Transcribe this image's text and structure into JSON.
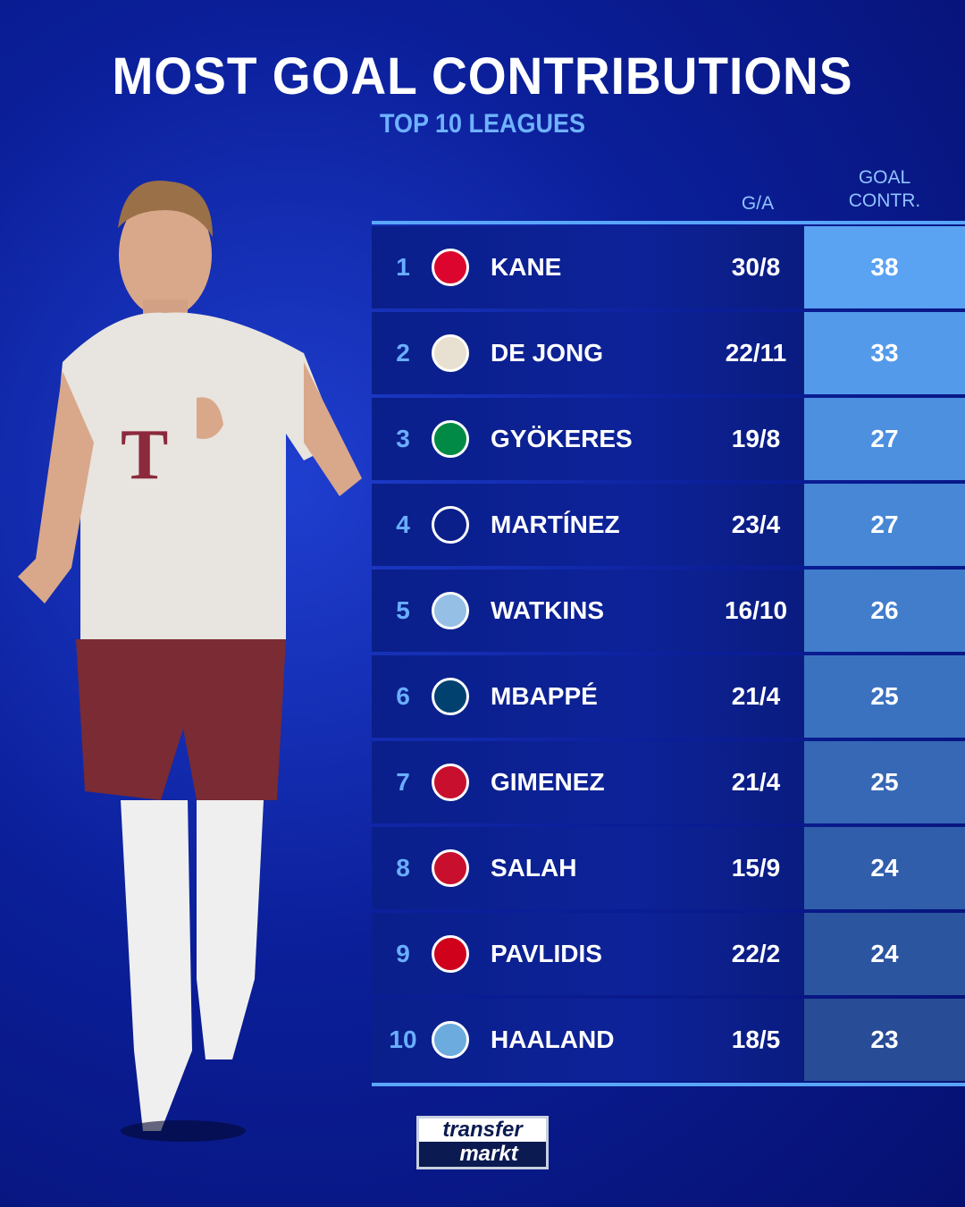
{
  "title": "MOST GOAL CONTRIBUTIONS",
  "subtitle": "TOP 10 LEAGUES",
  "columns": {
    "ga": "G/A",
    "contr_line1": "GOAL",
    "contr_line2": "CONTR."
  },
  "rows": [
    {
      "rank": "1",
      "club_icon": "bayern-munich-crest",
      "crest_color": "#dc052d",
      "name": "KANE",
      "ga": "30/8",
      "contr": "38",
      "cell_color": "#5aa2f2"
    },
    {
      "rank": "2",
      "club_icon": "psv-crest",
      "crest_color": "#e8e0d0",
      "name": "DE JONG",
      "ga": "22/11",
      "contr": "33",
      "cell_color": "#549aea"
    },
    {
      "rank": "3",
      "club_icon": "sporting-cp-crest",
      "crest_color": "#008a45",
      "name": "GYÖKERES",
      "ga": "19/8",
      "contr": "27",
      "cell_color": "#4d90e0"
    },
    {
      "rank": "4",
      "club_icon": "inter-crest",
      "crest_color": "#0a1f8a",
      "name": "MARTÍNEZ",
      "ga": "23/4",
      "contr": "27",
      "cell_color": "#4787d6"
    },
    {
      "rank": "5",
      "club_icon": "aston-villa-crest",
      "crest_color": "#95bfe5",
      "name": "WATKINS",
      "ga": "16/10",
      "contr": "26",
      "cell_color": "#417dcb"
    },
    {
      "rank": "6",
      "club_icon": "psg-crest",
      "crest_color": "#004170",
      "name": "MBAPPÉ",
      "ga": "21/4",
      "contr": "25",
      "cell_color": "#3b72c0"
    },
    {
      "rank": "7",
      "club_icon": "feyenoord-crest",
      "crest_color": "#c8102e",
      "name": "GIMENEZ",
      "ga": "21/4",
      "contr": "25",
      "cell_color": "#3668b5"
    },
    {
      "rank": "8",
      "club_icon": "liverpool-crest",
      "crest_color": "#c8102e",
      "name": "SALAH",
      "ga": "15/9",
      "contr": "24",
      "cell_color": "#315eaa"
    },
    {
      "rank": "9",
      "club_icon": "az-alkmaar-crest",
      "crest_color": "#d0021b",
      "name": "PAVLIDIS",
      "ga": "22/2",
      "contr": "24",
      "cell_color": "#2c55a0"
    },
    {
      "rank": "10",
      "club_icon": "manchester-city-crest",
      "crest_color": "#6cabdd",
      "name": "HAALAND",
      "ga": "18/5",
      "contr": "23",
      "cell_color": "#284c96"
    }
  ],
  "logo": {
    "line1": "transfer",
    "line2": "markt"
  }
}
